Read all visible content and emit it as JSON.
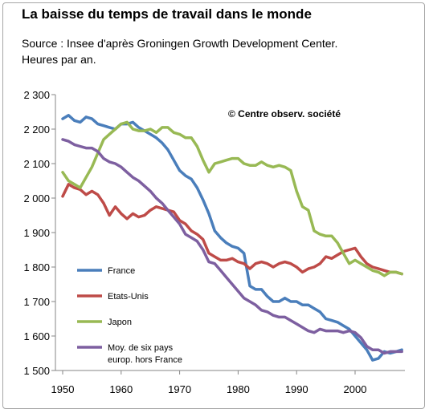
{
  "chart_data": {
    "type": "line",
    "title": "La baisse du temps de travail dans le monde",
    "subtitle_lines": [
      "Source : Insee d'après Groningen Growth  Development Center.",
      "Heures par an."
    ],
    "annotation": "© Centre observ. société",
    "xlabel": "",
    "ylabel": "",
    "xlim": [
      1950,
      2008
    ],
    "ylim": [
      1500,
      2300
    ],
    "x_ticks": [
      1950,
      1960,
      1970,
      1980,
      1990,
      2000
    ],
    "y_ticks": [
      1500,
      1600,
      1700,
      1800,
      1900,
      2000,
      2100,
      2200,
      2300
    ],
    "x_tick_labels": [
      "1950",
      "1960",
      "1970",
      "1980",
      "1990",
      "2000"
    ],
    "y_tick_labels": [
      "1 500",
      "1 600",
      "1 700",
      "1 800",
      "1 900",
      "2 000",
      "2 100",
      "2 200",
      "2 300"
    ],
    "grid": false,
    "legend_position": "bottom-left",
    "series": [
      {
        "name": "France",
        "color": "#4a7ebb",
        "points": [
          [
            1950,
            2230
          ],
          [
            1951,
            2240
          ],
          [
            1952,
            2225
          ],
          [
            1953,
            2220
          ],
          [
            1954,
            2235
          ],
          [
            1955,
            2230
          ],
          [
            1956,
            2215
          ],
          [
            1957,
            2210
          ],
          [
            1958,
            2205
          ],
          [
            1959,
            2200
          ],
          [
            1960,
            2215
          ],
          [
            1961,
            2215
          ],
          [
            1962,
            2220
          ],
          [
            1963,
            2205
          ],
          [
            1964,
            2195
          ],
          [
            1965,
            2185
          ],
          [
            1966,
            2175
          ],
          [
            1967,
            2160
          ],
          [
            1968,
            2140
          ],
          [
            1969,
            2110
          ],
          [
            1970,
            2080
          ],
          [
            1971,
            2065
          ],
          [
            1972,
            2055
          ],
          [
            1973,
            2030
          ],
          [
            1974,
            1995
          ],
          [
            1975,
            1955
          ],
          [
            1976,
            1905
          ],
          [
            1977,
            1885
          ],
          [
            1978,
            1870
          ],
          [
            1979,
            1860
          ],
          [
            1980,
            1855
          ],
          [
            1981,
            1840
          ],
          [
            1982,
            1745
          ],
          [
            1983,
            1735
          ],
          [
            1984,
            1735
          ],
          [
            1985,
            1715
          ],
          [
            1986,
            1700
          ],
          [
            1987,
            1700
          ],
          [
            1988,
            1710
          ],
          [
            1989,
            1700
          ],
          [
            1990,
            1700
          ],
          [
            1991,
            1690
          ],
          [
            1992,
            1690
          ],
          [
            1993,
            1680
          ],
          [
            1994,
            1670
          ],
          [
            1995,
            1650
          ],
          [
            1996,
            1645
          ],
          [
            1997,
            1640
          ],
          [
            1998,
            1630
          ],
          [
            1999,
            1620
          ],
          [
            2000,
            1600
          ],
          [
            2001,
            1580
          ],
          [
            2002,
            1560
          ],
          [
            2003,
            1530
          ],
          [
            2004,
            1535
          ],
          [
            2005,
            1555
          ],
          [
            2006,
            1550
          ],
          [
            2007,
            1555
          ],
          [
            2008,
            1560
          ]
        ]
      },
      {
        "name": "Etats-Unis",
        "color": "#be4b48",
        "points": [
          [
            1950,
            2005
          ],
          [
            1951,
            2040
          ],
          [
            1952,
            2030
          ],
          [
            1953,
            2025
          ],
          [
            1954,
            2010
          ],
          [
            1955,
            2020
          ],
          [
            1956,
            2010
          ],
          [
            1957,
            1985
          ],
          [
            1958,
            1950
          ],
          [
            1959,
            1975
          ],
          [
            1960,
            1955
          ],
          [
            1961,
            1940
          ],
          [
            1962,
            1955
          ],
          [
            1963,
            1945
          ],
          [
            1964,
            1950
          ],
          [
            1965,
            1965
          ],
          [
            1966,
            1975
          ],
          [
            1967,
            1970
          ],
          [
            1968,
            1965
          ],
          [
            1969,
            1960
          ],
          [
            1970,
            1935
          ],
          [
            1971,
            1925
          ],
          [
            1972,
            1905
          ],
          [
            1973,
            1895
          ],
          [
            1974,
            1880
          ],
          [
            1975,
            1840
          ],
          [
            1976,
            1830
          ],
          [
            1977,
            1820
          ],
          [
            1978,
            1820
          ],
          [
            1979,
            1825
          ],
          [
            1980,
            1815
          ],
          [
            1981,
            1810
          ],
          [
            1982,
            1795
          ],
          [
            1983,
            1810
          ],
          [
            1984,
            1815
          ],
          [
            1985,
            1810
          ],
          [
            1986,
            1800
          ],
          [
            1987,
            1810
          ],
          [
            1988,
            1815
          ],
          [
            1989,
            1810
          ],
          [
            1990,
            1800
          ],
          [
            1991,
            1785
          ],
          [
            1992,
            1795
          ],
          [
            1993,
            1800
          ],
          [
            1994,
            1810
          ],
          [
            1995,
            1830
          ],
          [
            1996,
            1825
          ],
          [
            1997,
            1835
          ],
          [
            1998,
            1845
          ],
          [
            1999,
            1850
          ],
          [
            2000,
            1855
          ],
          [
            2001,
            1830
          ],
          [
            2002,
            1810
          ],
          [
            2003,
            1800
          ],
          [
            2004,
            1795
          ],
          [
            2005,
            1790
          ],
          [
            2006,
            1785
          ],
          [
            2007,
            1785
          ],
          [
            2008,
            1780
          ]
        ]
      },
      {
        "name": "Japon",
        "color": "#98b954",
        "points": [
          [
            1950,
            2075
          ],
          [
            1951,
            2050
          ],
          [
            1952,
            2040
          ],
          [
            1953,
            2030
          ],
          [
            1954,
            2060
          ],
          [
            1955,
            2090
          ],
          [
            1956,
            2130
          ],
          [
            1957,
            2170
          ],
          [
            1958,
            2185
          ],
          [
            1959,
            2200
          ],
          [
            1960,
            2215
          ],
          [
            1961,
            2220
          ],
          [
            1962,
            2200
          ],
          [
            1963,
            2195
          ],
          [
            1964,
            2195
          ],
          [
            1965,
            2200
          ],
          [
            1966,
            2190
          ],
          [
            1967,
            2205
          ],
          [
            1968,
            2205
          ],
          [
            1969,
            2190
          ],
          [
            1970,
            2185
          ],
          [
            1971,
            2175
          ],
          [
            1972,
            2175
          ],
          [
            1973,
            2150
          ],
          [
            1974,
            2110
          ],
          [
            1975,
            2075
          ],
          [
            1976,
            2100
          ],
          [
            1977,
            2105
          ],
          [
            1978,
            2110
          ],
          [
            1979,
            2115
          ],
          [
            1980,
            2115
          ],
          [
            1981,
            2100
          ],
          [
            1982,
            2095
          ],
          [
            1983,
            2095
          ],
          [
            1984,
            2105
          ],
          [
            1985,
            2095
          ],
          [
            1986,
            2090
          ],
          [
            1987,
            2095
          ],
          [
            1988,
            2090
          ],
          [
            1989,
            2080
          ],
          [
            1990,
            2020
          ],
          [
            1991,
            1975
          ],
          [
            1992,
            1965
          ],
          [
            1993,
            1905
          ],
          [
            1994,
            1895
          ],
          [
            1995,
            1890
          ],
          [
            1996,
            1890
          ],
          [
            1997,
            1870
          ],
          [
            1998,
            1840
          ],
          [
            1999,
            1810
          ],
          [
            2000,
            1820
          ],
          [
            2001,
            1810
          ],
          [
            2002,
            1800
          ],
          [
            2003,
            1790
          ],
          [
            2004,
            1785
          ],
          [
            2005,
            1775
          ],
          [
            2006,
            1785
          ],
          [
            2007,
            1785
          ],
          [
            2008,
            1780
          ]
        ]
      },
      {
        "name": "Moy. de six pays europ. hors France",
        "legend_lines": [
          "Moy. de six pays",
          "europ. hors France"
        ],
        "color": "#7d5fa0",
        "points": [
          [
            1950,
            2170
          ],
          [
            1951,
            2165
          ],
          [
            1952,
            2155
          ],
          [
            1953,
            2150
          ],
          [
            1954,
            2145
          ],
          [
            1955,
            2145
          ],
          [
            1956,
            2135
          ],
          [
            1957,
            2115
          ],
          [
            1958,
            2105
          ],
          [
            1959,
            2100
          ],
          [
            1960,
            2090
          ],
          [
            1961,
            2075
          ],
          [
            1962,
            2060
          ],
          [
            1963,
            2050
          ],
          [
            1964,
            2035
          ],
          [
            1965,
            2020
          ],
          [
            1966,
            2000
          ],
          [
            1967,
            1985
          ],
          [
            1968,
            1965
          ],
          [
            1969,
            1945
          ],
          [
            1970,
            1925
          ],
          [
            1971,
            1895
          ],
          [
            1972,
            1885
          ],
          [
            1973,
            1875
          ],
          [
            1974,
            1850
          ],
          [
            1975,
            1815
          ],
          [
            1976,
            1810
          ],
          [
            1977,
            1790
          ],
          [
            1978,
            1770
          ],
          [
            1979,
            1750
          ],
          [
            1980,
            1730
          ],
          [
            1981,
            1710
          ],
          [
            1982,
            1700
          ],
          [
            1983,
            1690
          ],
          [
            1984,
            1675
          ],
          [
            1985,
            1670
          ],
          [
            1986,
            1660
          ],
          [
            1987,
            1655
          ],
          [
            1988,
            1655
          ],
          [
            1989,
            1645
          ],
          [
            1990,
            1635
          ],
          [
            1991,
            1625
          ],
          [
            1992,
            1615
          ],
          [
            1993,
            1610
          ],
          [
            1994,
            1620
          ],
          [
            1995,
            1615
          ],
          [
            1996,
            1615
          ],
          [
            1997,
            1615
          ],
          [
            1998,
            1610
          ],
          [
            1999,
            1615
          ],
          [
            2000,
            1610
          ],
          [
            2001,
            1595
          ],
          [
            2002,
            1570
          ],
          [
            2003,
            1560
          ],
          [
            2004,
            1560
          ],
          [
            2005,
            1550
          ],
          [
            2006,
            1555
          ],
          [
            2007,
            1555
          ],
          [
            2008,
            1555
          ]
        ]
      }
    ]
  }
}
